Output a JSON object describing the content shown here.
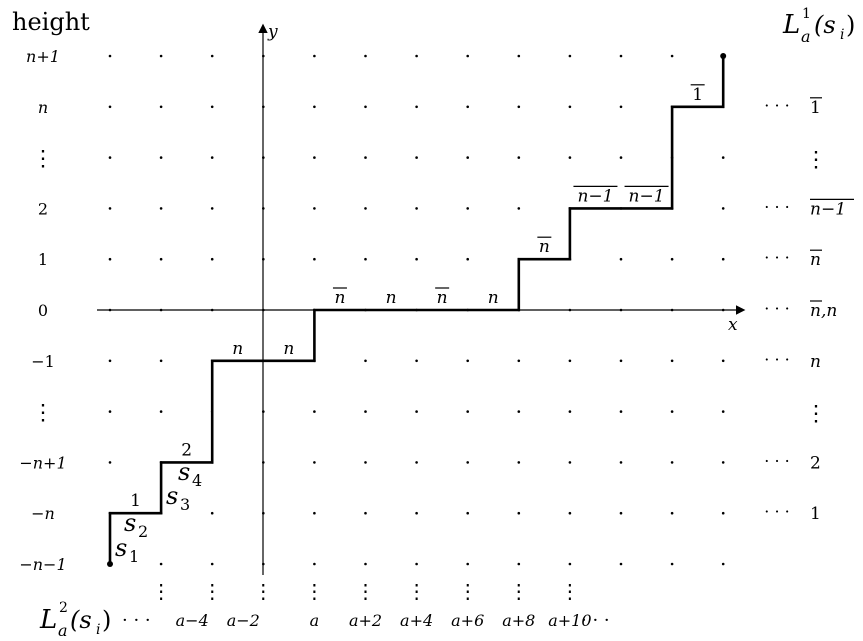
{
  "header": {
    "left": "height",
    "right_base": "L",
    "right_sub": "a",
    "right_sup": "1",
    "right_arg": "(s",
    "right_arg_sub": "i",
    "right_close": ")"
  },
  "axes": {
    "x": "x",
    "y": "y"
  },
  "grid": {
    "columns": 13,
    "rows": 11,
    "y_axis_col": 3,
    "x_axis_row": 5
  },
  "height_labels": [
    "n+1",
    "n",
    "⋮",
    "2",
    "1",
    "0",
    "−1",
    "⋮",
    "−n+1",
    "−n",
    "−n−1"
  ],
  "right_labels": {
    "rows": [
      {
        "row": 1,
        "dots": "· · ·",
        "text": "1",
        "bar": true
      },
      {
        "row": 2,
        "dots": "",
        "text": "⋮",
        "bar": false
      },
      {
        "row": 3,
        "dots": "· · ·",
        "text": "n−1",
        "bar": true
      },
      {
        "row": 4,
        "dots": "· · ·",
        "text": "n",
        "bar": true
      },
      {
        "row": 5,
        "dots": "· · ·",
        "text_bar": "n",
        "text_plain": ",n"
      },
      {
        "row": 6,
        "dots": "· · ·",
        "text": "n",
        "bar": false
      },
      {
        "row": 7,
        "dots": "",
        "text": "⋮",
        "bar": false
      },
      {
        "row": 8,
        "dots": "· · ·",
        "text": "2",
        "bar": false
      },
      {
        "row": 9,
        "dots": "· · ·",
        "text": "1",
        "bar": false
      }
    ]
  },
  "path": {
    "description_points": [
      [
        0,
        10
      ],
      [
        0,
        9
      ],
      [
        1,
        9
      ],
      [
        1,
        8
      ],
      [
        2,
        8
      ],
      [
        2,
        6
      ],
      [
        4,
        6
      ],
      [
        4,
        5
      ],
      [
        8,
        5
      ],
      [
        8,
        4
      ],
      [
        9,
        4
      ],
      [
        9,
        3
      ],
      [
        11,
        3
      ],
      [
        11,
        1
      ],
      [
        12,
        1
      ],
      [
        12,
        0
      ]
    ],
    "start_dot": [
      0,
      10
    ],
    "end_dot": [
      12,
      0
    ]
  },
  "step_labels": [
    {
      "col": 0.5,
      "row": 9,
      "text": "1",
      "bar": false
    },
    {
      "col": 1.5,
      "row": 8,
      "text": "2",
      "bar": false
    },
    {
      "col": 2.5,
      "row": 6,
      "text": "n",
      "bar": false
    },
    {
      "col": 3.5,
      "row": 6,
      "text": "n",
      "bar": false
    },
    {
      "col": 4.5,
      "row": 5,
      "text": "n",
      "bar": true
    },
    {
      "col": 5.5,
      "row": 5,
      "text": "n",
      "bar": false
    },
    {
      "col": 6.5,
      "row": 5,
      "text": "n",
      "bar": true
    },
    {
      "col": 7.5,
      "row": 5,
      "text": "n",
      "bar": false
    },
    {
      "col": 8.5,
      "row": 4,
      "text": "n",
      "bar": true
    },
    {
      "col": 9.5,
      "row": 3,
      "text": "n−1",
      "bar": true
    },
    {
      "col": 10.5,
      "row": 3,
      "text": "n−1",
      "bar": true
    },
    {
      "col": 11.5,
      "row": 1,
      "text": "1",
      "bar": true
    }
  ],
  "s_labels": [
    {
      "text": "s",
      "sub": "1"
    },
    {
      "text": "s",
      "sub": "2"
    },
    {
      "text": "s",
      "sub": "3"
    },
    {
      "text": "s",
      "sub": "4"
    }
  ],
  "bottom": {
    "base": "L",
    "sub": "a",
    "sup": "2",
    "arg": "(s",
    "arg_sub": "i",
    "close": ")",
    "dots_left": "· · ·",
    "dots_right": "· · ·",
    "labels": [
      "a−4",
      "a−2",
      "a",
      "a+2",
      "a+4",
      "a+6",
      "a+8",
      "a+10"
    ],
    "vdots": "⋮"
  }
}
